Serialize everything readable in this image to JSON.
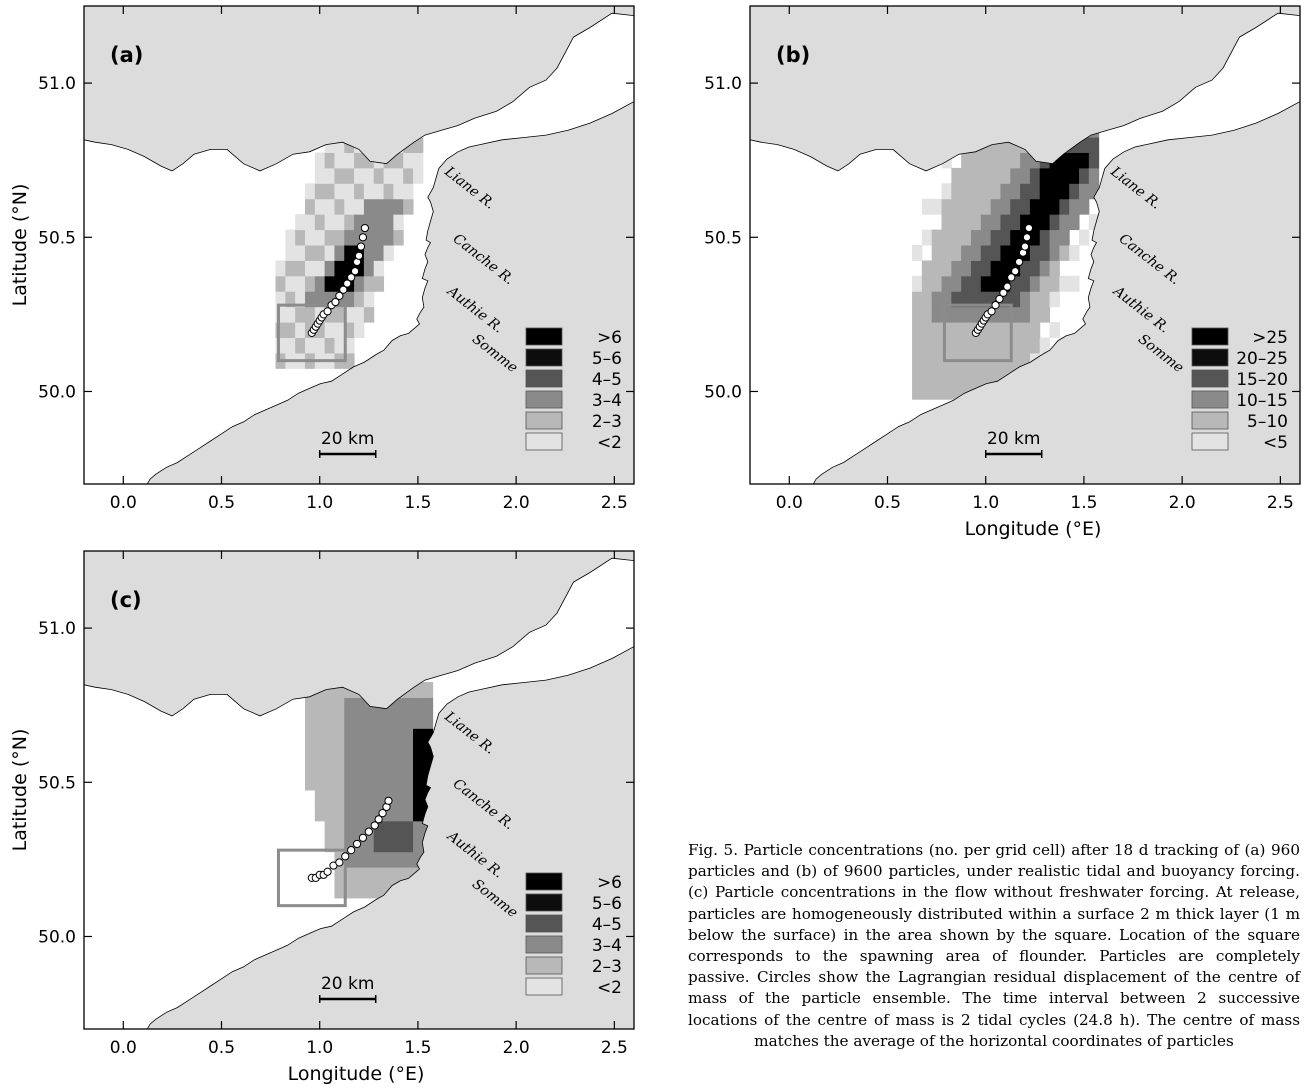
{
  "axes": {
    "x_ticks": [
      "0.0",
      "0.5",
      "1.0",
      "1.5",
      "2.0",
      "2.5"
    ],
    "y_ticks": [
      "51.0",
      "50.5",
      "50.0"
    ],
    "xlabel": "Longitude (°E)",
    "ylabel": "Latitude (°N)"
  },
  "scale_bar": "20 km",
  "rivers": [
    "Liane R.",
    "Canche R.",
    "Authie R.",
    "Somme"
  ],
  "panels": [
    {
      "label": "(a)",
      "particles": 960,
      "legend": [
        ">6",
        "5–6",
        "4–5",
        "3–4",
        "2–3",
        "<2"
      ],
      "track": [
        [
          0.96,
          50.19
        ],
        [
          0.97,
          50.2
        ],
        [
          0.98,
          50.21
        ],
        [
          0.99,
          50.22
        ],
        [
          1.0,
          50.23
        ],
        [
          1.01,
          50.24
        ],
        [
          1.02,
          50.25
        ],
        [
          1.04,
          50.26
        ],
        [
          1.06,
          50.28
        ],
        [
          1.08,
          50.29
        ],
        [
          1.1,
          50.31
        ],
        [
          1.12,
          50.33
        ],
        [
          1.14,
          50.35
        ],
        [
          1.16,
          50.37
        ],
        [
          1.18,
          50.39
        ],
        [
          1.19,
          50.42
        ],
        [
          1.2,
          50.44
        ],
        [
          1.21,
          50.47
        ],
        [
          1.22,
          50.5
        ],
        [
          1.23,
          50.53
        ]
      ]
    },
    {
      "label": "(b)",
      "particles": 9600,
      "legend": [
        ">25",
        "20–25",
        "15–20",
        "10–15",
        "5–10",
        "<5"
      ],
      "track": [
        [
          0.95,
          50.19
        ],
        [
          0.96,
          50.2
        ],
        [
          0.97,
          50.21
        ],
        [
          0.98,
          50.22
        ],
        [
          0.99,
          50.23
        ],
        [
          1.0,
          50.24
        ],
        [
          1.01,
          50.25
        ],
        [
          1.03,
          50.26
        ],
        [
          1.05,
          50.28
        ],
        [
          1.07,
          50.3
        ],
        [
          1.09,
          50.32
        ],
        [
          1.11,
          50.34
        ],
        [
          1.13,
          50.37
        ],
        [
          1.15,
          50.39
        ],
        [
          1.17,
          50.42
        ],
        [
          1.19,
          50.45
        ],
        [
          1.2,
          50.47
        ],
        [
          1.21,
          50.5
        ],
        [
          1.22,
          50.53
        ]
      ]
    },
    {
      "label": "(c)",
      "particles": 960,
      "legend": [
        ">6",
        "5–6",
        "4–5",
        "3–4",
        "2–3",
        "<2"
      ],
      "track": [
        [
          0.96,
          50.19
        ],
        [
          0.98,
          50.19
        ],
        [
          1.0,
          50.2
        ],
        [
          1.02,
          50.2
        ],
        [
          1.04,
          50.21
        ],
        [
          1.07,
          50.23
        ],
        [
          1.1,
          50.24
        ],
        [
          1.13,
          50.26
        ],
        [
          1.16,
          50.28
        ],
        [
          1.19,
          50.3
        ],
        [
          1.22,
          50.32
        ],
        [
          1.25,
          50.34
        ],
        [
          1.28,
          50.36
        ],
        [
          1.3,
          50.38
        ],
        [
          1.32,
          50.4
        ],
        [
          1.34,
          50.42
        ],
        [
          1.35,
          50.44
        ]
      ]
    }
  ],
  "caption": "Fig. 5. Particle concentrations (no. per grid cell) after 18 d tracking of (a) 960 particles and (b) of 9600 particles, under realistic tidal and buoyancy forcing. (c) Particle concentrations in the flow without freshwater forcing. At release, particles are homogeneously distributed within a surface 2 m thick layer (1 m below the surface) in the area shown by the square. Location of the square corresponds to the spawning area of flounder. Particles are completely passive. Circles show the Lagrangian residual displacement of the centre of mass of the particle ensemble. The time interval between 2 successive locations of the centre of mass is 2 tidal cycles (24.8 h). The centre of mass matches the average of the horizontal coordinates of particles",
  "colors": {
    "land": "#dcdcdc",
    "sea": "#ffffff",
    "square": "#8c8c8c",
    "levels": [
      "#000000",
      "#0d0d0d",
      "#555555",
      "#8a8a8a",
      "#b8b8b8",
      "#e3e3e3"
    ]
  }
}
